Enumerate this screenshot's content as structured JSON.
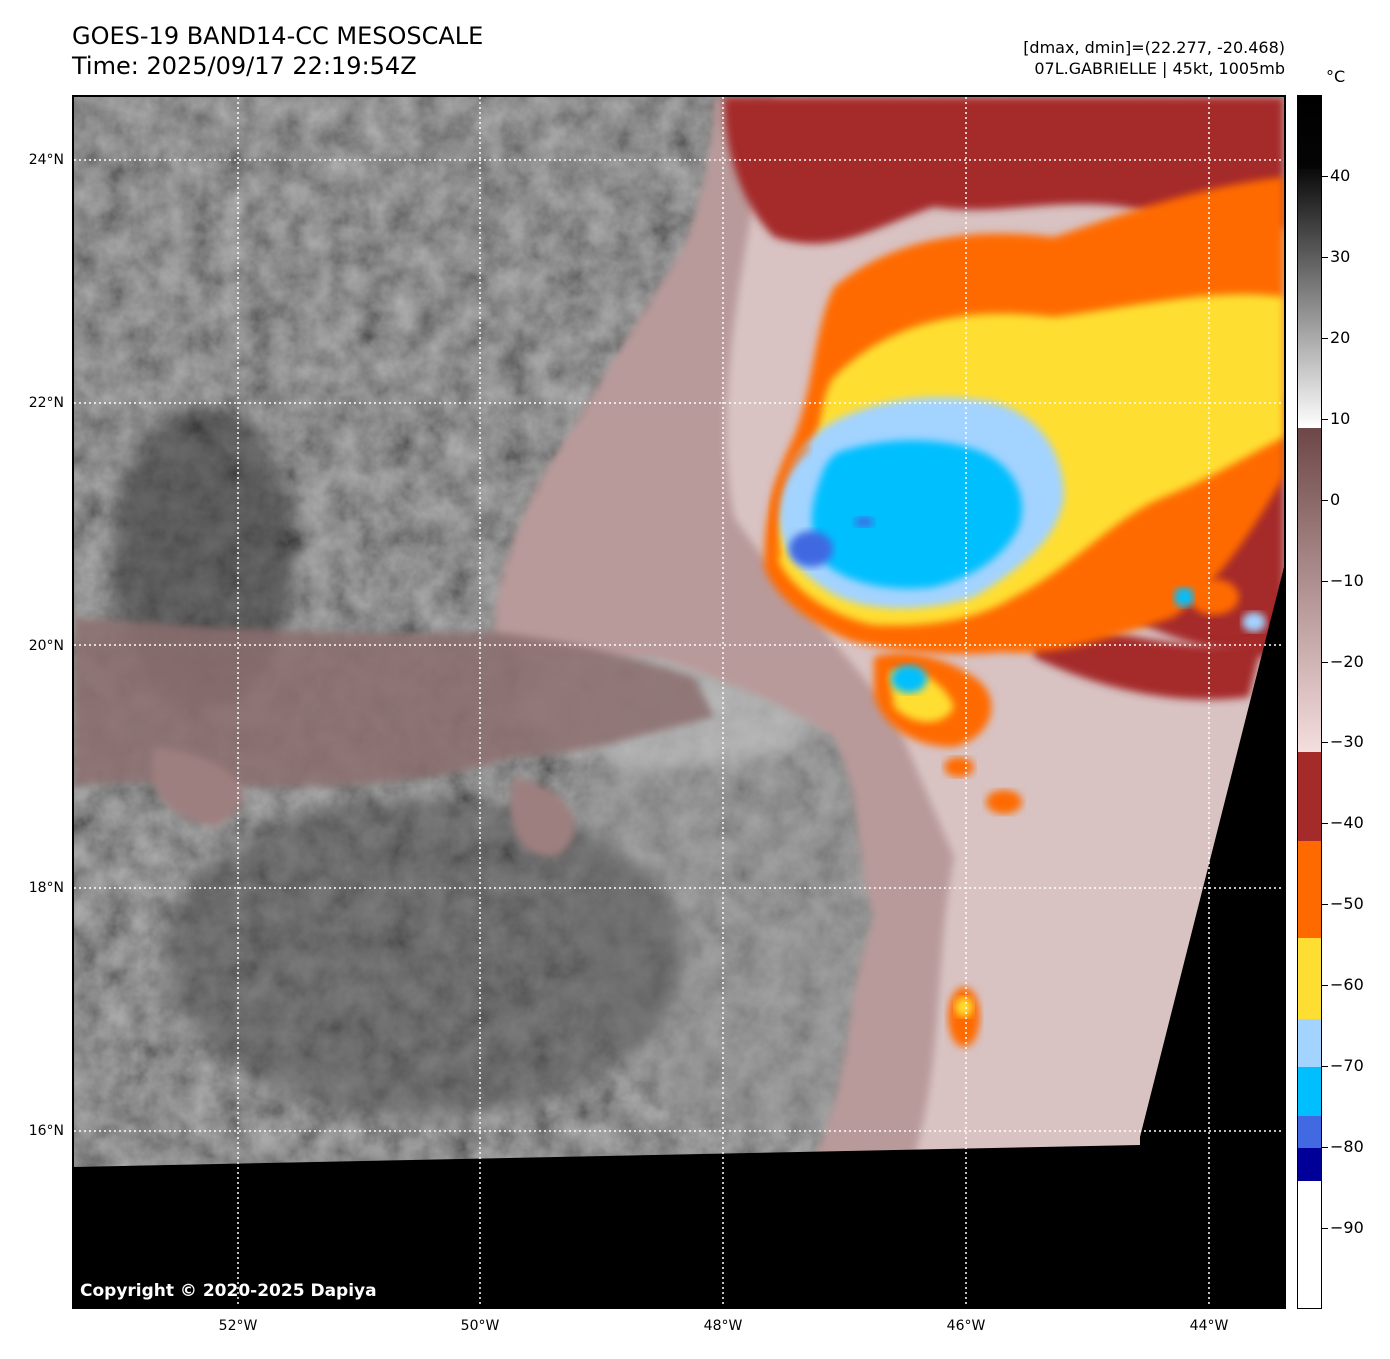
{
  "title": {
    "line1": "GOES-19 BAND14-CC MESOSCALE",
    "line2": "Time: 2025/09/17 22:19:54Z"
  },
  "info": {
    "line1": "[dmax, dmin]=(22.277, -20.468)",
    "line2": "07L.GABRIELLE | 45kt, 1005mb"
  },
  "map": {
    "copyright": "Copyright © 2020-2025 Dapiya",
    "lat_labels": [
      "24°N",
      "22°N",
      "20°N",
      "18°N",
      "16°N"
    ],
    "lon_labels": [
      "52°W",
      "50°W",
      "48°W",
      "46°W",
      "44°W"
    ]
  },
  "colorbar": {
    "unit": "°C",
    "tick_labels": [
      "40",
      "30",
      "20",
      "10",
      "0",
      "−10",
      "−20",
      "−30",
      "−40",
      "−50",
      "−60",
      "−70",
      "−80",
      "−90"
    ],
    "segments": [
      {
        "from": 50,
        "to": 41,
        "colors": [
          "#000000",
          "#050505"
        ]
      },
      {
        "from": 41,
        "to": 9,
        "colors": [
          "#0a0a0a",
          "#ffffff"
        ]
      },
      {
        "from": 9,
        "to": -31,
        "colors": [
          "#6d4747",
          "#f5dede"
        ]
      },
      {
        "from": -31,
        "to": -42,
        "colors": [
          "#a52a2a",
          "#a52a2a"
        ]
      },
      {
        "from": -42,
        "to": -54,
        "colors": [
          "#ff6a00",
          "#ff6a00"
        ]
      },
      {
        "from": -54,
        "to": -64,
        "colors": [
          "#ffde33",
          "#ffde33"
        ]
      },
      {
        "from": -64,
        "to": -70,
        "colors": [
          "#a3d3ff",
          "#a3d3ff"
        ]
      },
      {
        "from": -70,
        "to": -76,
        "colors": [
          "#00bfff",
          "#00bfff"
        ]
      },
      {
        "from": -76,
        "to": -80,
        "colors": [
          "#4169e1",
          "#4169e1"
        ]
      },
      {
        "from": -80,
        "to": -84,
        "colors": [
          "#000099",
          "#000099"
        ]
      },
      {
        "from": -84,
        "to": -100,
        "colors": [
          "#ffffff",
          "#ffffff"
        ]
      }
    ]
  }
}
